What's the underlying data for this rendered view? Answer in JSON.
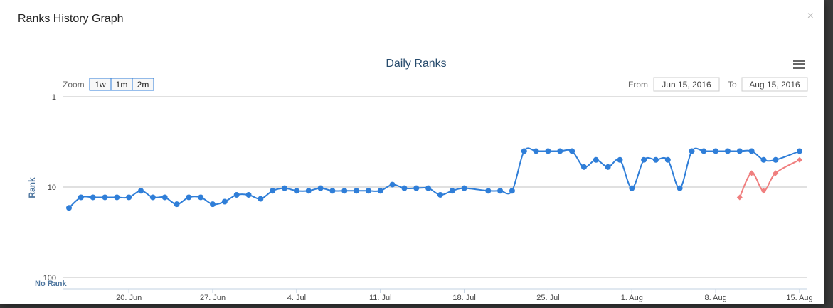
{
  "modal": {
    "title": "Ranks History Graph",
    "close_label": "×"
  },
  "range_selector": {
    "zoom_label": "Zoom",
    "buttons": [
      "1w",
      "1m",
      "2m"
    ],
    "from_label": "From",
    "to_label": "To",
    "from_value": "Jun 15, 2016",
    "to_value": "Aug 15, 2016"
  },
  "menu_icon": "hamburger-menu-icon",
  "chart_data": {
    "type": "line",
    "title": "Daily Ranks",
    "ylabel": "Rank",
    "y_scale": "log-reversed",
    "ylim": [
      1,
      100
    ],
    "y_ticks": [
      {
        "value": 1,
        "label": "1"
      },
      {
        "value": 10,
        "label": "10"
      },
      {
        "value": 100,
        "label": "100"
      }
    ],
    "no_rank_label": "No Rank",
    "x_ticks": [
      {
        "date": "2016-06-20",
        "label": "20. Jun"
      },
      {
        "date": "2016-06-27",
        "label": "27. Jun"
      },
      {
        "date": "2016-07-04",
        "label": "4. Jul"
      },
      {
        "date": "2016-07-11",
        "label": "11. Jul"
      },
      {
        "date": "2016-07-18",
        "label": "18. Jul"
      },
      {
        "date": "2016-07-25",
        "label": "25. Jul"
      },
      {
        "date": "2016-08-01",
        "label": "1. Aug"
      },
      {
        "date": "2016-08-08",
        "label": "8. Aug"
      },
      {
        "date": "2016-08-15",
        "label": "15. Aug"
      }
    ],
    "xlim": [
      "2016-06-15",
      "2016-08-15"
    ],
    "series": [
      {
        "color": "#2f7ed8",
        "points": [
          [
            "2016-06-15",
            17
          ],
          [
            "2016-06-16",
            13
          ],
          [
            "2016-06-17",
            13
          ],
          [
            "2016-06-18",
            13
          ],
          [
            "2016-06-19",
            13
          ],
          [
            "2016-06-20",
            13
          ],
          [
            "2016-06-21",
            11
          ],
          [
            "2016-06-22",
            13
          ],
          [
            "2016-06-23",
            13
          ],
          [
            "2016-06-24",
            15.5
          ],
          [
            "2016-06-25",
            13
          ],
          [
            "2016-06-26",
            13
          ],
          [
            "2016-06-27",
            15.5
          ],
          [
            "2016-06-28",
            14.5
          ],
          [
            "2016-06-29",
            12.2
          ],
          [
            "2016-06-30",
            12.2
          ],
          [
            "2016-07-01",
            13.5
          ],
          [
            "2016-07-02",
            11
          ],
          [
            "2016-07-03",
            10.3
          ],
          [
            "2016-07-04",
            11
          ],
          [
            "2016-07-05",
            11
          ],
          [
            "2016-07-06",
            10.3
          ],
          [
            "2016-07-07",
            11
          ],
          [
            "2016-07-08",
            11
          ],
          [
            "2016-07-09",
            11
          ],
          [
            "2016-07-10",
            11
          ],
          [
            "2016-07-11",
            11
          ],
          [
            "2016-07-12",
            9.4
          ],
          [
            "2016-07-13",
            10.3
          ],
          [
            "2016-07-14",
            10.3
          ],
          [
            "2016-07-15",
            10.3
          ],
          [
            "2016-07-16",
            12.2
          ],
          [
            "2016-07-17",
            11
          ],
          [
            "2016-07-18",
            10.3
          ],
          [
            "2016-07-20",
            11
          ],
          [
            "2016-07-21",
            11
          ],
          [
            "2016-07-22",
            11
          ],
          [
            "2016-07-23",
            4
          ],
          [
            "2016-07-24",
            4
          ],
          [
            "2016-07-25",
            4
          ],
          [
            "2016-07-26",
            4
          ],
          [
            "2016-07-27",
            4
          ],
          [
            "2016-07-28",
            6
          ],
          [
            "2016-07-29",
            5
          ],
          [
            "2016-07-30",
            6
          ],
          [
            "2016-07-31",
            5
          ],
          [
            "2016-08-01",
            10.3
          ],
          [
            "2016-08-02",
            5
          ],
          [
            "2016-08-03",
            5
          ],
          [
            "2016-08-04",
            5
          ],
          [
            "2016-08-05",
            10.3
          ],
          [
            "2016-08-06",
            4
          ],
          [
            "2016-08-07",
            4
          ],
          [
            "2016-08-08",
            4
          ],
          [
            "2016-08-09",
            4
          ],
          [
            "2016-08-10",
            4
          ],
          [
            "2016-08-11",
            4
          ],
          [
            "2016-08-12",
            5
          ],
          [
            "2016-08-13",
            5
          ],
          [
            "2016-08-15",
            4
          ]
        ]
      },
      {
        "color": "#f07f7f",
        "points": [
          [
            "2016-08-10",
            13
          ],
          [
            "2016-08-11",
            7
          ],
          [
            "2016-08-12",
            11
          ],
          [
            "2016-08-13",
            7
          ],
          [
            "2016-08-15",
            5
          ]
        ]
      }
    ],
    "grid": true,
    "legend": "none"
  }
}
